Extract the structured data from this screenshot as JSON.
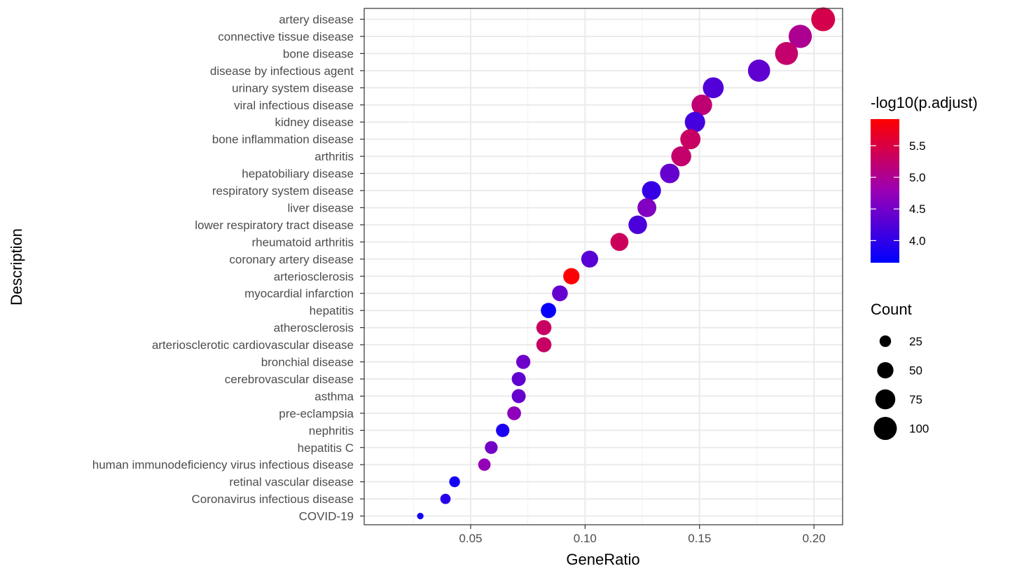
{
  "chart_data": {
    "type": "scatter",
    "xlabel": "GeneRatio",
    "ylabel": "Description",
    "xlim": [
      0.0035,
      0.2125
    ],
    "x_ticks": [
      {
        "value": 0.05,
        "label": "0.05"
      },
      {
        "value": 0.1,
        "label": "0.10"
      },
      {
        "value": 0.15,
        "label": "0.15"
      },
      {
        "value": 0.2,
        "label": "0.20"
      }
    ],
    "grid": true,
    "legend_position": "right",
    "color_legend": {
      "title": "-log10(p.adjust)",
      "min": 3.65,
      "max": 5.92,
      "low_color": "#0000ff",
      "high_color": "#ff0000",
      "ticks": [
        {
          "value": 4.0,
          "label": "4.0"
        },
        {
          "value": 4.5,
          "label": "4.5"
        },
        {
          "value": 5.0,
          "label": "5.0"
        },
        {
          "value": 5.5,
          "label": "5.5"
        }
      ]
    },
    "size_legend": {
      "title": "Count",
      "ticks": [
        {
          "value": 25,
          "label": "25"
        },
        {
          "value": 50,
          "label": "50"
        },
        {
          "value": 75,
          "label": "75"
        },
        {
          "value": 100,
          "label": "100"
        }
      ]
    },
    "points": [
      {
        "description": "artery disease",
        "gene_ratio": 0.204,
        "count": 107,
        "neg_log10_padj": 5.45
      },
      {
        "description": "connective tissue disease",
        "gene_ratio": 0.194,
        "count": 102,
        "neg_log10_padj": 5.0
      },
      {
        "description": "bone disease",
        "gene_ratio": 0.188,
        "count": 99,
        "neg_log10_padj": 5.25
      },
      {
        "description": "disease by infectious agent",
        "gene_ratio": 0.176,
        "count": 93,
        "neg_log10_padj": 4.35
      },
      {
        "description": "urinary system disease",
        "gene_ratio": 0.156,
        "count": 82,
        "neg_log10_padj": 4.25
      },
      {
        "description": "viral infectious disease",
        "gene_ratio": 0.151,
        "count": 80,
        "neg_log10_padj": 5.2
      },
      {
        "description": "kidney disease",
        "gene_ratio": 0.148,
        "count": 78,
        "neg_log10_padj": 4.15
      },
      {
        "description": "bone inflammation disease",
        "gene_ratio": 0.146,
        "count": 77,
        "neg_log10_padj": 5.3
      },
      {
        "description": "arthritis",
        "gene_ratio": 0.142,
        "count": 75,
        "neg_log10_padj": 5.25
      },
      {
        "description": "hepatobiliary disease",
        "gene_ratio": 0.137,
        "count": 72,
        "neg_log10_padj": 4.4
      },
      {
        "description": "respiratory system disease",
        "gene_ratio": 0.129,
        "count": 68,
        "neg_log10_padj": 4.05
      },
      {
        "description": "liver disease",
        "gene_ratio": 0.127,
        "count": 67,
        "neg_log10_padj": 4.6
      },
      {
        "description": "lower respiratory tract disease",
        "gene_ratio": 0.123,
        "count": 65,
        "neg_log10_padj": 4.2
      },
      {
        "description": "rheumatoid arthritis",
        "gene_ratio": 0.115,
        "count": 61,
        "neg_log10_padj": 5.35
      },
      {
        "description": "coronary artery disease",
        "gene_ratio": 0.102,
        "count": 54,
        "neg_log10_padj": 4.3
      },
      {
        "description": "arteriosclerosis",
        "gene_ratio": 0.094,
        "count": 50,
        "neg_log10_padj": 5.9
      },
      {
        "description": "myocardial infarction",
        "gene_ratio": 0.089,
        "count": 47,
        "neg_log10_padj": 4.4
      },
      {
        "description": "hepatitis",
        "gene_ratio": 0.084,
        "count": 44,
        "neg_log10_padj": 3.7
      },
      {
        "description": "atherosclerosis",
        "gene_ratio": 0.082,
        "count": 43,
        "neg_log10_padj": 5.3
      },
      {
        "description": "arteriosclerotic cardiovascular disease",
        "gene_ratio": 0.082,
        "count": 43,
        "neg_log10_padj": 5.3
      },
      {
        "description": "bronchial disease",
        "gene_ratio": 0.073,
        "count": 38,
        "neg_log10_padj": 4.45
      },
      {
        "description": "cerebrovascular disease",
        "gene_ratio": 0.071,
        "count": 37,
        "neg_log10_padj": 4.35
      },
      {
        "description": "asthma",
        "gene_ratio": 0.071,
        "count": 37,
        "neg_log10_padj": 4.4
      },
      {
        "description": "pre-eclampsia",
        "gene_ratio": 0.069,
        "count": 36,
        "neg_log10_padj": 4.7
      },
      {
        "description": "nephritis",
        "gene_ratio": 0.064,
        "count": 34,
        "neg_log10_padj": 3.85
      },
      {
        "description": "hepatitis C",
        "gene_ratio": 0.059,
        "count": 31,
        "neg_log10_padj": 4.5
      },
      {
        "description": "human immunodeficiency virus infectious disease",
        "gene_ratio": 0.056,
        "count": 29,
        "neg_log10_padj": 4.75
      },
      {
        "description": "retinal vascular disease",
        "gene_ratio": 0.043,
        "count": 22,
        "neg_log10_padj": 3.8
      },
      {
        "description": "Coronavirus infectious disease",
        "gene_ratio": 0.039,
        "count": 20,
        "neg_log10_padj": 3.95
      },
      {
        "description": "COVID-19",
        "gene_ratio": 0.028,
        "count": 8,
        "neg_log10_padj": 3.8
      }
    ]
  }
}
